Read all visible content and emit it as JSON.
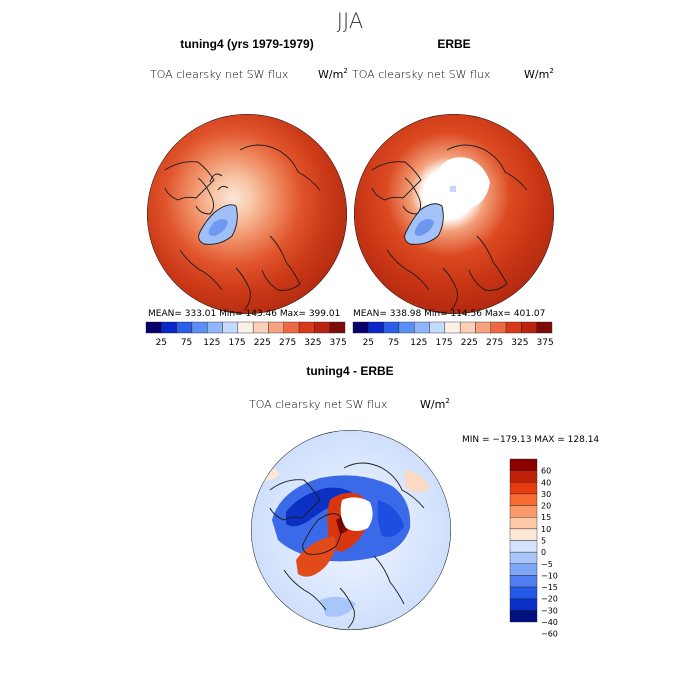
{
  "season": "JJA",
  "colors": {
    "coast": "#1a1a1a",
    "land_highlight_top": "#c42a14",
    "lscale": [
      "#08006b",
      "#0a28c8",
      "#2c5fe8",
      "#5b8ff5",
      "#8fb6fa",
      "#c4dbfd",
      "#fbf1e6",
      "#fccfb8",
      "#f7a27e",
      "#ed6844",
      "#d83a1a",
      "#bb2310",
      "#7d0c08"
    ],
    "dscale": [
      "#8b0000",
      "#c0200a",
      "#e63c10",
      "#f76a30",
      "#fa9a6a",
      "#fcc8a6",
      "#fde7d6",
      "#d3e3fd",
      "#a9c6fb",
      "#7da6f5",
      "#4f7ef0",
      "#2458e6",
      "#0a30c8",
      "#001080"
    ]
  },
  "panels": [
    {
      "title": "tuning4 (yrs 1979-1979)",
      "variable": "TOA clearsky net SW flux",
      "units_base": "W/m",
      "units_exp": "2",
      "stats": "MEAN= 333.01   Min= 143.46   Max= 399.01",
      "kind": "model"
    },
    {
      "title": "ERBE",
      "variable": "TOA clearsky net SW flux",
      "units_base": "W/m",
      "units_exp": "2",
      "stats": "MEAN= 338.98   Min= 114.56   Max= 401.07",
      "kind": "obs"
    }
  ],
  "colorbar_ticks": [
    "25",
    "75",
    "125",
    "175",
    "225",
    "275",
    "325",
    "375"
  ],
  "diff": {
    "title": "tuning4 - ERBE",
    "variable": "TOA clearsky net SW flux",
    "units_base": "W/m",
    "units_exp": "2",
    "minmax": "MIN = −179.13  MAX = 128.14",
    "scale_labels": [
      "60",
      "40",
      "30",
      "20",
      "15",
      "10",
      "5",
      "0",
      "−5",
      "−10",
      "−15",
      "−20",
      "−30",
      "−40",
      "−60"
    ]
  },
  "chart_data": [
    {
      "type": "heatmap",
      "title": "tuning4 (yrs 1979-1979)",
      "subtitle": "TOA clearsky net SW flux",
      "units": "W/m^2",
      "projection": "north polar stereographic",
      "mean": 333.01,
      "min": 143.46,
      "max": 399.01,
      "levels": [
        25,
        50,
        75,
        100,
        125,
        150,
        175,
        200,
        225,
        250,
        275,
        300,
        325,
        350,
        375,
        400
      ]
    },
    {
      "type": "heatmap",
      "title": "ERBE",
      "subtitle": "TOA clearsky net SW flux",
      "units": "W/m^2",
      "projection": "north polar stereographic",
      "mean": 338.98,
      "min": 114.56,
      "max": 401.07,
      "levels": [
        25,
        50,
        75,
        100,
        125,
        150,
        175,
        200,
        225,
        250,
        275,
        300,
        325,
        350,
        375,
        400
      ]
    },
    {
      "type": "heatmap",
      "title": "tuning4 - ERBE",
      "subtitle": "TOA clearsky net SW flux",
      "units": "W/m^2",
      "projection": "north polar stereographic",
      "min": -179.13,
      "max": 128.14,
      "levels": [
        -60,
        -40,
        -30,
        -20,
        -15,
        -10,
        -5,
        0,
        5,
        10,
        15,
        20,
        30,
        40,
        60
      ]
    }
  ]
}
